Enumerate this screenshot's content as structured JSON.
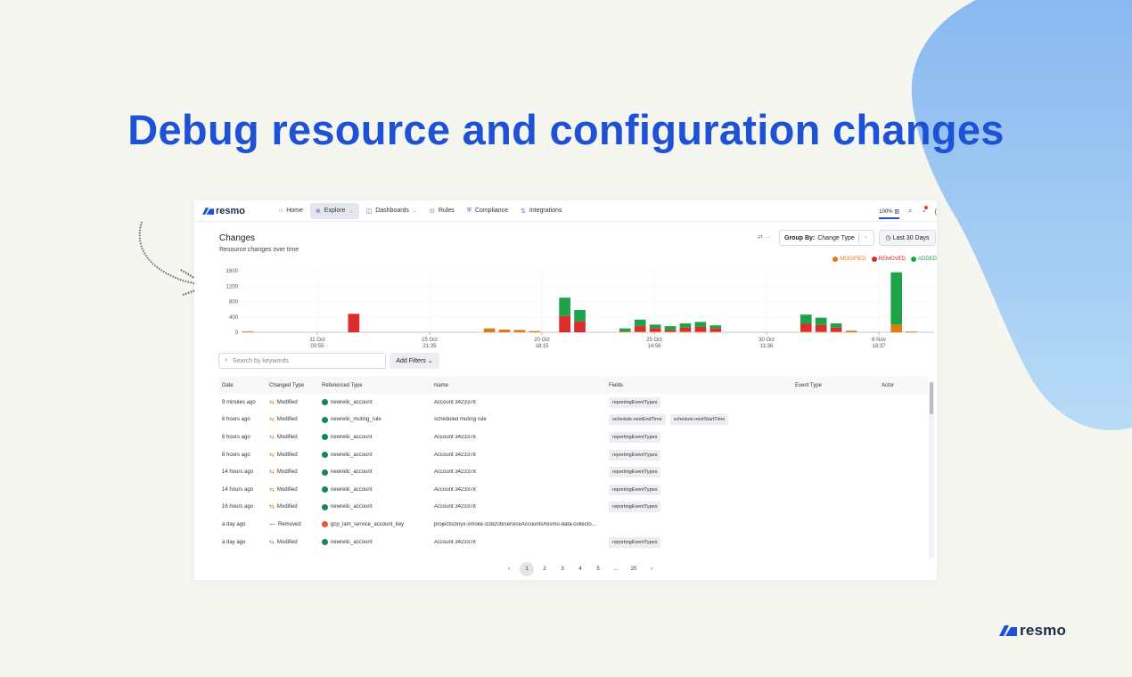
{
  "headline": "Debug resource and configuration changes",
  "footer_logo": "resmo",
  "app": {
    "logo": "resmo",
    "nav": [
      {
        "label": "Home",
        "icon": "home-icon"
      },
      {
        "label": "Explore",
        "icon": "globe-icon",
        "active": true
      },
      {
        "label": "Dashboards",
        "icon": "chart-icon"
      },
      {
        "label": "Rules",
        "icon": "rules-icon"
      },
      {
        "label": "Compliance",
        "icon": "compliance-icon"
      },
      {
        "label": "Integrations",
        "icon": "integrations-icon"
      }
    ],
    "zoom": "100%",
    "page_title": "Changes",
    "page_subtitle": "Resource changes over time",
    "group_by_label": "Group By:",
    "group_by_value": "Change Type",
    "date_range": "Last 30 Days",
    "search_placeholder": "Search by keywords",
    "add_filters": "Add Filters",
    "columns": [
      "Date",
      "Changed Type",
      "Referenced Type",
      "Name",
      "Fields",
      "Event Type",
      "Actor"
    ],
    "rows": [
      {
        "date": "9 minutes ago",
        "change": "Modified",
        "ref_type": "newrelic_account",
        "ref_icon": "newrelic",
        "name": "Account 3423378",
        "fields": [
          "reportingEventTypes"
        ]
      },
      {
        "date": "6 hours ago",
        "change": "Modified",
        "ref_type": "newrelic_muting_rule",
        "ref_icon": "newrelic",
        "name": "scheduled muting rule",
        "fields": [
          "schedule.nextEndTime",
          "schedule.nextStartTime"
        ]
      },
      {
        "date": "6 hours ago",
        "change": "Modified",
        "ref_type": "newrelic_account",
        "ref_icon": "newrelic",
        "name": "Account 3423378",
        "fields": [
          "reportingEventTypes"
        ]
      },
      {
        "date": "8 hours ago",
        "change": "Modified",
        "ref_type": "newrelic_account",
        "ref_icon": "newrelic",
        "name": "Account 3423378",
        "fields": [
          "reportingEventTypes"
        ]
      },
      {
        "date": "14 hours ago",
        "change": "Modified",
        "ref_type": "newrelic_account",
        "ref_icon": "newrelic",
        "name": "Account 3423378",
        "fields": [
          "reportingEventTypes"
        ]
      },
      {
        "date": "14 hours ago",
        "change": "Modified",
        "ref_type": "newrelic_account",
        "ref_icon": "newrelic",
        "name": "Account 3423378",
        "fields": [
          "reportingEventTypes"
        ]
      },
      {
        "date": "16 hours ago",
        "change": "Modified",
        "ref_type": "newrelic_account",
        "ref_icon": "newrelic",
        "name": "Account 3423378",
        "fields": [
          "reportingEventTypes"
        ]
      },
      {
        "date": "a day ago",
        "change": "Removed",
        "ref_type": "gcp_iam_service_account_key",
        "ref_icon": "gcp",
        "name": "projects/onyx-smoke-338208/serviceAccounts/resmo-data-collecto...",
        "fields": []
      },
      {
        "date": "a day ago",
        "change": "Modified",
        "ref_type": "newrelic_account",
        "ref_icon": "newrelic",
        "name": "Account 3423378",
        "fields": [
          "reportingEventTypes"
        ]
      }
    ],
    "pagination": [
      "‹",
      "1",
      "2",
      "3",
      "4",
      "5",
      "...",
      "20",
      "›"
    ],
    "pagination_active": "1"
  },
  "colors": {
    "accent": "#1d52d6",
    "modified": "#e07b12",
    "removed": "#de2b2b",
    "added": "#1fa34a"
  },
  "chart_data": {
    "type": "bar",
    "stacked": true,
    "ylim": [
      0,
      1600
    ],
    "y_ticks": [
      "1600",
      "1200",
      "800",
      "400",
      "0"
    ],
    "x_tick_labels": [
      {
        "date": "11 Oct",
        "time": "00:55"
      },
      {
        "date": "15 Oct",
        "time": "21:35"
      },
      {
        "date": "20 Oct",
        "time": "18:15"
      },
      {
        "date": "25 Oct",
        "time": "14:56"
      },
      {
        "date": "30 Oct",
        "time": "11:36"
      },
      {
        "date": "6 Nov",
        "time": "18:37"
      }
    ],
    "legend": [
      "MODIFIED",
      "REMOVED",
      "ADDED"
    ],
    "legend_position": "top-right",
    "bars": [
      {
        "slot": 0,
        "modified": 20,
        "removed": 0,
        "added": 0
      },
      {
        "slot": 7,
        "modified": 0,
        "removed": 480,
        "added": 0
      },
      {
        "slot": 16,
        "modified": 100,
        "removed": 0,
        "added": 0
      },
      {
        "slot": 17,
        "modified": 70,
        "removed": 0,
        "added": 0
      },
      {
        "slot": 18,
        "modified": 60,
        "removed": 0,
        "added": 0
      },
      {
        "slot": 19,
        "modified": 30,
        "removed": 0,
        "added": 0
      },
      {
        "slot": 21,
        "modified": 0,
        "removed": 420,
        "added": 480
      },
      {
        "slot": 22,
        "modified": 0,
        "removed": 280,
        "added": 300
      },
      {
        "slot": 25,
        "modified": 20,
        "removed": 0,
        "added": 80
      },
      {
        "slot": 26,
        "modified": 20,
        "removed": 140,
        "added": 170
      },
      {
        "slot": 27,
        "modified": 20,
        "removed": 90,
        "added": 90
      },
      {
        "slot": 28,
        "modified": 20,
        "removed": 40,
        "added": 100
      },
      {
        "slot": 29,
        "modified": 20,
        "removed": 100,
        "added": 110
      },
      {
        "slot": 30,
        "modified": 20,
        "removed": 120,
        "added": 130
      },
      {
        "slot": 31,
        "modified": 20,
        "removed": 80,
        "added": 80
      },
      {
        "slot": 37,
        "modified": 20,
        "removed": 200,
        "added": 240
      },
      {
        "slot": 38,
        "modified": 20,
        "removed": 170,
        "added": 190
      },
      {
        "slot": 39,
        "modified": 20,
        "removed": 100,
        "added": 110
      },
      {
        "slot": 40,
        "modified": 40,
        "removed": 0,
        "added": 0
      },
      {
        "slot": 43,
        "modified": 200,
        "removed": 0,
        "added": 1360
      },
      {
        "slot": 44,
        "modified": 20,
        "removed": 0,
        "added": 0
      }
    ]
  }
}
